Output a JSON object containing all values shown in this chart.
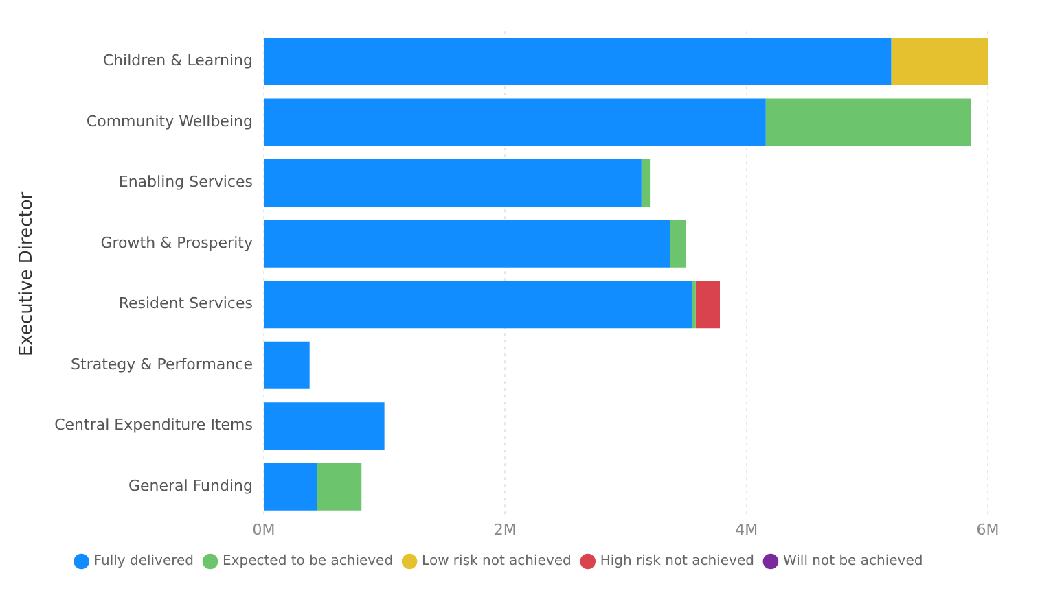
{
  "chart_data": {
    "type": "bar",
    "orientation": "horizontal",
    "stacked": true,
    "ylabel": "Executive Director",
    "categories": [
      "Children & Learning",
      "Community Wellbeing",
      "Enabling Services",
      "Growth & Prosperity",
      "Resident Services",
      "Strategy & Performance",
      "Central Expenditure Items",
      "General Funding"
    ],
    "series": [
      {
        "name": "Fully delivered",
        "color": "#118dff",
        "values": [
          5.2,
          4.16,
          3.13,
          3.37,
          3.55,
          0.38,
          1.0,
          0.44
        ]
      },
      {
        "name": "Expected to be achieved",
        "color": "#6cc56c",
        "values": [
          null,
          1.7,
          0.07,
          0.13,
          0.03,
          null,
          null,
          0.37
        ]
      },
      {
        "name": "Low risk not achieved",
        "color": "#e6c12f",
        "values": [
          0.8,
          null,
          null,
          null,
          null,
          null,
          null,
          null
        ]
      },
      {
        "name": "High risk not achieved",
        "color": "#d9434e",
        "values": [
          null,
          null,
          null,
          null,
          0.2,
          null,
          null,
          null
        ]
      },
      {
        "name": "Will not be achieved",
        "color": "#7b2a9b",
        "values": [
          null,
          null,
          null,
          null,
          null,
          null,
          null,
          null
        ]
      }
    ],
    "xlim": [
      0,
      6
    ],
    "xticks": [
      {
        "value": 0,
        "label": "0M"
      },
      {
        "value": 2,
        "label": "2M"
      },
      {
        "value": 4,
        "label": "4M"
      },
      {
        "value": 6,
        "label": "6M"
      }
    ],
    "grid": "x",
    "legend": "bottom",
    "marker": "circle"
  }
}
